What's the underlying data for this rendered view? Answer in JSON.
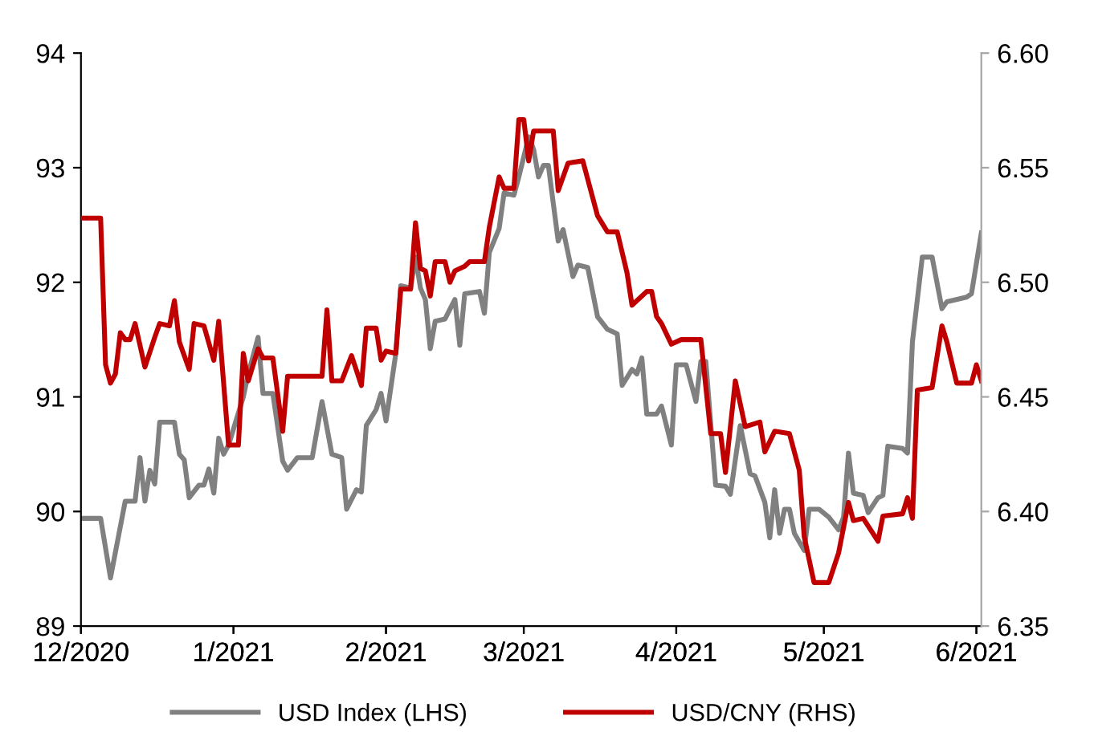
{
  "chart_data": {
    "type": "line",
    "xlim": [
      "2020-12-01",
      "2021-06-02"
    ],
    "xticks": [
      {
        "value": "2020-12-01",
        "label": "12/2020"
      },
      {
        "value": "2021-01-01",
        "label": "1/2021"
      },
      {
        "value": "2021-02-01",
        "label": "2/2021"
      },
      {
        "value": "2021-03-01",
        "label": "3/2021"
      },
      {
        "value": "2021-04-01",
        "label": "4/2021"
      },
      {
        "value": "2021-05-01",
        "label": "5/2021"
      },
      {
        "value": "2021-06-01",
        "label": "6/2021"
      }
    ],
    "ylim": [
      89,
      94
    ],
    "yticks": [
      89,
      90,
      91,
      92,
      93,
      94
    ],
    "y2lim": [
      6.35,
      6.6
    ],
    "y2ticks": [
      {
        "value": 6.35,
        "label": "6.35"
      },
      {
        "value": 6.4,
        "label": "6.40"
      },
      {
        "value": 6.45,
        "label": "6.45"
      },
      {
        "value": 6.5,
        "label": "6.50"
      },
      {
        "value": 6.55,
        "label": "6.55"
      },
      {
        "value": 6.6,
        "label": "6.60"
      }
    ],
    "legend": "bottom",
    "grid": false,
    "marker": "none",
    "line_style": "solid",
    "series": [
      {
        "name": "USD Index (LHS)",
        "color": "#808080",
        "axis": "y",
        "x": [
          "2020-12-01",
          "2020-12-05",
          "2020-12-07",
          "2020-12-10",
          "2020-12-12",
          "2020-12-13",
          "2020-12-14",
          "2020-12-15",
          "2020-12-16",
          "2020-12-17",
          "2020-12-20",
          "2020-12-21",
          "2020-12-22",
          "2020-12-23",
          "2020-12-25",
          "2020-12-26",
          "2020-12-27",
          "2020-12-28",
          "2020-12-29",
          "2020-12-30",
          "2020-12-31",
          "2021-01-03",
          "2021-01-04",
          "2021-01-06",
          "2021-01-07",
          "2021-01-09",
          "2021-01-11",
          "2021-01-12",
          "2021-01-14",
          "2021-01-17",
          "2021-01-19",
          "2021-01-21",
          "2021-01-23",
          "2021-01-24",
          "2021-01-26",
          "2021-01-27",
          "2021-01-28",
          "2021-01-30",
          "2021-01-31",
          "2021-02-01",
          "2021-02-03",
          "2021-02-04",
          "2021-02-06",
          "2021-02-07",
          "2021-02-08",
          "2021-02-09",
          "2021-02-10",
          "2021-02-11",
          "2021-02-13",
          "2021-02-15",
          "2021-02-16",
          "2021-02-17",
          "2021-02-20",
          "2021-02-21",
          "2021-02-22",
          "2021-02-24",
          "2021-02-25",
          "2021-02-27",
          "2021-02-28",
          "2021-03-02",
          "2021-03-03",
          "2021-03-04",
          "2021-03-05",
          "2021-03-06",
          "2021-03-08",
          "2021-03-09",
          "2021-03-11",
          "2021-03-12",
          "2021-03-14",
          "2021-03-16",
          "2021-03-18",
          "2021-03-20",
          "2021-03-21",
          "2021-03-23",
          "2021-03-24",
          "2021-03-25",
          "2021-03-26",
          "2021-03-28",
          "2021-03-29",
          "2021-03-31",
          "2021-04-01",
          "2021-04-03",
          "2021-04-05",
          "2021-04-06",
          "2021-04-07",
          "2021-04-09",
          "2021-04-11",
          "2021-04-12",
          "2021-04-14",
          "2021-04-16",
          "2021-04-17",
          "2021-04-19",
          "2021-04-20",
          "2021-04-21",
          "2021-04-22",
          "2021-04-23",
          "2021-04-24",
          "2021-04-25",
          "2021-04-27",
          "2021-04-28",
          "2021-04-30",
          "2021-05-02",
          "2021-05-04",
          "2021-05-05",
          "2021-05-06",
          "2021-05-07",
          "2021-05-09",
          "2021-05-10",
          "2021-05-12",
          "2021-05-13",
          "2021-05-14",
          "2021-05-17",
          "2021-05-18",
          "2021-05-19",
          "2021-05-21",
          "2021-05-23",
          "2021-05-25",
          "2021-05-26",
          "2021-05-30",
          "2021-05-31",
          "2021-06-02"
        ],
        "values": [
          89.94,
          89.94,
          89.42,
          90.09,
          90.09,
          90.47,
          90.09,
          90.36,
          90.24,
          90.78,
          90.78,
          90.5,
          90.45,
          90.12,
          90.23,
          90.23,
          90.37,
          90.16,
          90.64,
          90.5,
          90.58,
          91.0,
          91.2,
          91.52,
          91.03,
          91.03,
          90.44,
          90.36,
          90.47,
          90.47,
          90.96,
          90.5,
          90.47,
          90.02,
          90.19,
          90.17,
          90.75,
          90.89,
          91.03,
          90.79,
          91.38,
          91.97,
          91.95,
          92.22,
          91.95,
          91.85,
          91.42,
          91.66,
          91.68,
          91.85,
          91.45,
          91.9,
          91.92,
          91.73,
          92.26,
          92.47,
          92.78,
          92.76,
          92.92,
          93.27,
          93.16,
          92.92,
          93.02,
          93.02,
          92.36,
          92.46,
          92.05,
          92.15,
          92.13,
          91.7,
          91.59,
          91.55,
          91.1,
          91.24,
          91.2,
          91.34,
          90.85,
          90.85,
          90.92,
          90.58,
          91.28,
          91.28,
          90.96,
          91.31,
          91.31,
          90.23,
          90.22,
          90.15,
          90.75,
          90.33,
          90.31,
          90.08,
          89.77,
          90.19,
          89.81,
          90.02,
          90.02,
          89.81,
          89.66,
          90.02,
          90.02,
          89.95,
          89.84,
          89.95,
          90.51,
          90.16,
          90.14,
          89.99,
          90.12,
          90.14,
          90.57,
          90.55,
          90.51,
          91.48,
          92.22,
          92.22,
          91.77,
          91.83,
          91.87,
          91.9,
          92.43
        ]
      },
      {
        "name": "USD/CNY (RHS)",
        "color": "#c00000",
        "axis": "y2",
        "x": [
          "2020-12-01",
          "2020-12-05",
          "2020-12-06",
          "2020-12-07",
          "2020-12-08",
          "2020-12-09",
          "2020-12-10",
          "2020-12-11",
          "2020-12-12",
          "2020-12-14",
          "2020-12-16",
          "2020-12-17",
          "2020-12-19",
          "2020-12-20",
          "2020-12-21",
          "2020-12-23",
          "2020-12-24",
          "2020-12-26",
          "2020-12-28",
          "2020-12-29",
          "2020-12-31",
          "2021-01-02",
          "2021-01-03",
          "2021-01-04",
          "2021-01-06",
          "2021-01-07",
          "2021-01-09",
          "2021-01-11",
          "2021-01-12",
          "2021-01-19",
          "2021-01-20",
          "2021-01-21",
          "2021-01-23",
          "2021-01-25",
          "2021-01-27",
          "2021-01-28",
          "2021-01-30",
          "2021-01-31",
          "2021-02-01",
          "2021-02-03",
          "2021-02-04",
          "2021-02-06",
          "2021-02-07",
          "2021-02-08",
          "2021-02-09",
          "2021-02-10",
          "2021-02-11",
          "2021-02-13",
          "2021-02-14",
          "2021-02-15",
          "2021-02-17",
          "2021-02-18",
          "2021-02-21",
          "2021-02-22",
          "2021-02-24",
          "2021-02-25",
          "2021-02-27",
          "2021-02-28",
          "2021-03-01",
          "2021-03-02",
          "2021-03-03",
          "2021-03-07",
          "2021-03-08",
          "2021-03-10",
          "2021-03-13",
          "2021-03-14",
          "2021-03-16",
          "2021-03-18",
          "2021-03-20",
          "2021-03-22",
          "2021-03-23",
          "2021-03-26",
          "2021-03-27",
          "2021-03-28",
          "2021-03-29",
          "2021-03-31",
          "2021-04-02",
          "2021-04-06",
          "2021-04-08",
          "2021-04-10",
          "2021-04-11",
          "2021-04-13",
          "2021-04-15",
          "2021-04-18",
          "2021-04-19",
          "2021-04-21",
          "2021-04-24",
          "2021-04-26",
          "2021-04-27",
          "2021-04-29",
          "2021-05-02",
          "2021-05-04",
          "2021-05-06",
          "2021-05-07",
          "2021-05-09",
          "2021-05-12",
          "2021-05-13",
          "2021-05-17",
          "2021-05-18",
          "2021-05-19",
          "2021-05-20",
          "2021-05-23",
          "2021-05-25",
          "2021-05-26",
          "2021-05-28",
          "2021-05-31",
          "2021-06-01",
          "2021-06-02"
        ],
        "values": [
          6.528,
          6.528,
          6.464,
          6.456,
          6.46,
          6.478,
          6.475,
          6.475,
          6.482,
          6.463,
          6.476,
          6.482,
          6.481,
          6.492,
          6.474,
          6.462,
          6.482,
          6.481,
          6.466,
          6.483,
          6.429,
          6.429,
          6.469,
          6.457,
          6.471,
          6.467,
          6.467,
          6.435,
          6.459,
          6.459,
          6.488,
          6.457,
          6.457,
          6.468,
          6.455,
          6.48,
          6.48,
          6.466,
          6.47,
          6.469,
          6.497,
          6.497,
          6.526,
          6.506,
          6.505,
          6.494,
          6.509,
          6.509,
          6.5,
          6.505,
          6.507,
          6.509,
          6.509,
          6.524,
          6.546,
          6.541,
          6.541,
          6.571,
          6.571,
          6.553,
          6.566,
          6.566,
          6.54,
          6.552,
          6.553,
          6.545,
          6.529,
          6.522,
          6.522,
          6.504,
          6.49,
          6.496,
          6.496,
          6.485,
          6.482,
          6.473,
          6.475,
          6.475,
          6.434,
          6.434,
          6.417,
          6.457,
          6.437,
          6.439,
          6.426,
          6.435,
          6.434,
          6.418,
          6.389,
          6.369,
          6.369,
          6.382,
          6.404,
          6.396,
          6.397,
          6.387,
          6.398,
          6.399,
          6.406,
          6.397,
          6.453,
          6.454,
          6.481,
          6.474,
          6.456,
          6.456,
          6.464,
          6.457
        ]
      }
    ]
  }
}
